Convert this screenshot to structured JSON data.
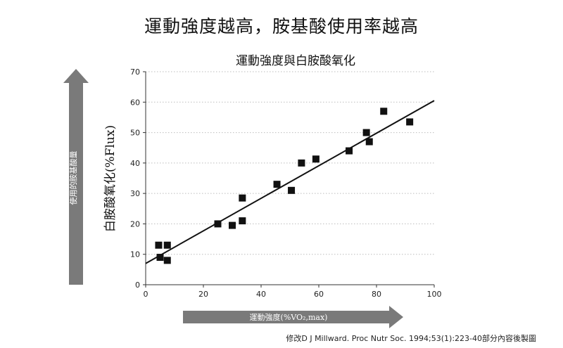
{
  "headline": "運動強度越高，胺基酸使用率越高",
  "credit": "修改D J Millward. Proc Nutr Soc. 1994;53(1):223-40部分內容後製圖",
  "colors": {
    "marker": "#111111",
    "arrow": "#7a7a7a",
    "grid": "#bdbdbd"
  },
  "chart_data": {
    "type": "scatter",
    "title": "運動強度與白胺酸氧化",
    "ylabel": "白胺酸氧化(%Flux)",
    "xlabel": "",
    "x_arrow_label": "運動強度(%VO₂,max)",
    "y_arrow_label": "使用的胺基酸量",
    "xlim": [
      0,
      100
    ],
    "ylim": [
      0,
      70
    ],
    "xticks": [
      0,
      20,
      40,
      60,
      80,
      100
    ],
    "yticks": [
      0,
      10,
      20,
      30,
      40,
      50,
      60,
      70
    ],
    "grid": "horizontal-dotted",
    "points": [
      {
        "x": 4.5,
        "y": 13
      },
      {
        "x": 7.5,
        "y": 13
      },
      {
        "x": 5,
        "y": 9
      },
      {
        "x": 7.5,
        "y": 8
      },
      {
        "x": 25,
        "y": 20
      },
      {
        "x": 30,
        "y": 19.5
      },
      {
        "x": 33.5,
        "y": 28.5
      },
      {
        "x": 33.5,
        "y": 21
      },
      {
        "x": 45.5,
        "y": 33
      },
      {
        "x": 50.5,
        "y": 31
      },
      {
        "x": 54,
        "y": 40
      },
      {
        "x": 59,
        "y": 41.3
      },
      {
        "x": 70.5,
        "y": 44
      },
      {
        "x": 76.5,
        "y": 50
      },
      {
        "x": 77.5,
        "y": 47
      },
      {
        "x": 82.5,
        "y": 57
      },
      {
        "x": 91.5,
        "y": 53.5
      }
    ],
    "trendline": {
      "x": [
        0,
        100
      ],
      "y": [
        7,
        60.5
      ]
    }
  }
}
